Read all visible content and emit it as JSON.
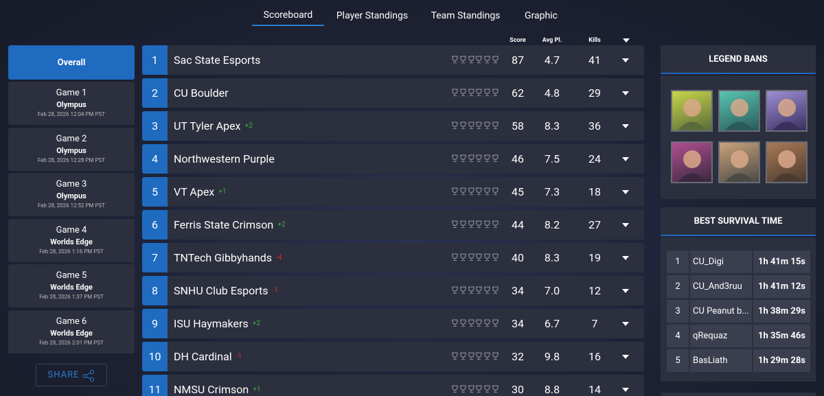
{
  "nav": {
    "tabs": [
      "Scoreboard",
      "Player Standings",
      "Team Standings",
      "Graphic"
    ]
  },
  "sidebar": {
    "overall": "Overall",
    "games": [
      {
        "title": "Game 1",
        "map": "Olympus",
        "time": "Feb 28, 2026 12:04 PM PST"
      },
      {
        "title": "Game 2",
        "map": "Olympus",
        "time": "Feb 28, 2026 12:28 PM PST"
      },
      {
        "title": "Game 3",
        "map": "Olympus",
        "time": "Feb 28, 2026 12:52 PM PST"
      },
      {
        "title": "Game 4",
        "map": "Worlds Edge",
        "time": "Feb 28, 2026 1:16 PM PST"
      },
      {
        "title": "Game 5",
        "map": "Worlds Edge",
        "time": "Feb 28, 2026 1:37 PM PST"
      },
      {
        "title": "Game 6",
        "map": "Worlds Edge",
        "time": "Feb 28, 2026 2:01 PM PST"
      }
    ],
    "share": "SHARE"
  },
  "table": {
    "headers": [
      "Score",
      "Avg Pl.",
      "Kills"
    ],
    "rows": [
      {
        "rank": "1",
        "team": "Sac State Esports",
        "score": "87",
        "avg": "4.7",
        "kills": "41"
      },
      {
        "rank": "2",
        "team": "CU Boulder",
        "score": "62",
        "avg": "4.8",
        "kills": "29"
      },
      {
        "rank": "3",
        "team": "UT Tyler Apex",
        "change": "+2",
        "score": "58",
        "avg": "8.3",
        "kills": "36"
      },
      {
        "rank": "4",
        "team": "Northwestern Purple",
        "score": "46",
        "avg": "7.5",
        "kills": "24"
      },
      {
        "rank": "5",
        "team": "VT Apex",
        "change": "+1",
        "score": "45",
        "avg": "7.3",
        "kills": "18"
      },
      {
        "rank": "6",
        "team": "Ferris State Crimson",
        "change": "+2",
        "score": "44",
        "avg": "8.2",
        "kills": "27"
      },
      {
        "rank": "7",
        "team": "TNTech Gibbyhands",
        "change": "-4",
        "score": "40",
        "avg": "8.3",
        "kills": "19"
      },
      {
        "rank": "8",
        "team": "SNHU Club Esports",
        "change": "-1",
        "score": "34",
        "avg": "7.0",
        "kills": "12"
      },
      {
        "rank": "9",
        "team": "ISU Haymakers",
        "change": "+2",
        "score": "34",
        "avg": "6.7",
        "kills": "7"
      },
      {
        "rank": "10",
        "team": "DH Cardinal",
        "change": "-1",
        "score": "32",
        "avg": "9.8",
        "kills": "16"
      },
      {
        "rank": "11",
        "team": "NMSU Crimson",
        "change": "+1",
        "score": "30",
        "avg": "8.8",
        "kills": "14"
      }
    ]
  },
  "legend_bans": {
    "title": "LEGEND BANS"
  },
  "survival": {
    "title": "BEST SURVIVAL TIME",
    "rows": [
      {
        "rank": "1",
        "player": "CU_Digi",
        "time": "1h 41m 15s"
      },
      {
        "rank": "2",
        "player": "CU_And3ruu",
        "time": "1h 41m 12s"
      },
      {
        "rank": "3",
        "player": "CU Peanut b...",
        "time": "1h 38m 29s"
      },
      {
        "rank": "4",
        "player": "qRequaz",
        "time": "1h 35m 46s"
      },
      {
        "rank": "5",
        "player": "BasLiath",
        "time": "1h 29m 28s"
      }
    ]
  }
}
